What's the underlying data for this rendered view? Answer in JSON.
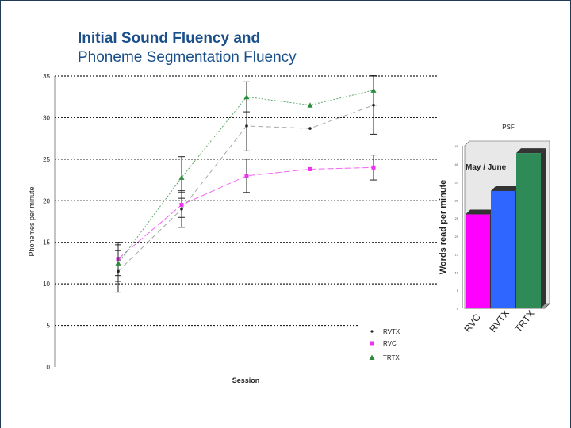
{
  "slide": {
    "title_line1": "Initial Sound Fluency and",
    "title_line2": "Phoneme Segmentation Fluency"
  },
  "chart_data": [
    {
      "type": "line",
      "title": "",
      "xlabel": "Session",
      "ylabel": "Phonemes per minute",
      "ylim": [
        0,
        35
      ],
      "yticks": [
        "0",
        "5",
        "10",
        "15",
        "20",
        "25",
        "30",
        "35"
      ],
      "x": [
        1,
        2,
        3,
        4,
        5
      ],
      "grid": "dashed horizontal",
      "legend_position": "bottom-right",
      "series": [
        {
          "name": "RVTX",
          "marker": "circle",
          "color": "#222222",
          "values": [
            11.5,
            19.0,
            29.0,
            28.7,
            31.5
          ],
          "err": [
            2.5,
            2.2,
            3.0,
            0,
            3.5
          ]
        },
        {
          "name": "RVC",
          "marker": "square",
          "color": "#ee33ee",
          "values": [
            13.0,
            19.5,
            23.0,
            23.8,
            24.0
          ],
          "err": [
            2.0,
            1.5,
            2.0,
            0,
            1.5
          ]
        },
        {
          "name": "TRTX",
          "marker": "triangle",
          "color": "#2e8b3e",
          "values": [
            12.5,
            22.8,
            32.5,
            31.5,
            33.3
          ],
          "err": [
            2.2,
            2.5,
            1.8,
            0,
            1.8
          ]
        }
      ]
    },
    {
      "type": "bar",
      "title": "PSF",
      "xlabel": "",
      "ylabel": "Words read per minute",
      "ylim": [
        0,
        45
      ],
      "yticks": [
        "0",
        "5",
        "10",
        "15",
        "20",
        "25",
        "30",
        "35",
        "40",
        "45"
      ],
      "annotation": "May / June",
      "categories": [
        "RVC",
        "RVTX",
        "TRTX"
      ],
      "values": [
        26,
        32.5,
        43
      ],
      "colors": [
        "#ff00ff",
        "#2e66ff",
        "#2e8b57"
      ]
    }
  ]
}
